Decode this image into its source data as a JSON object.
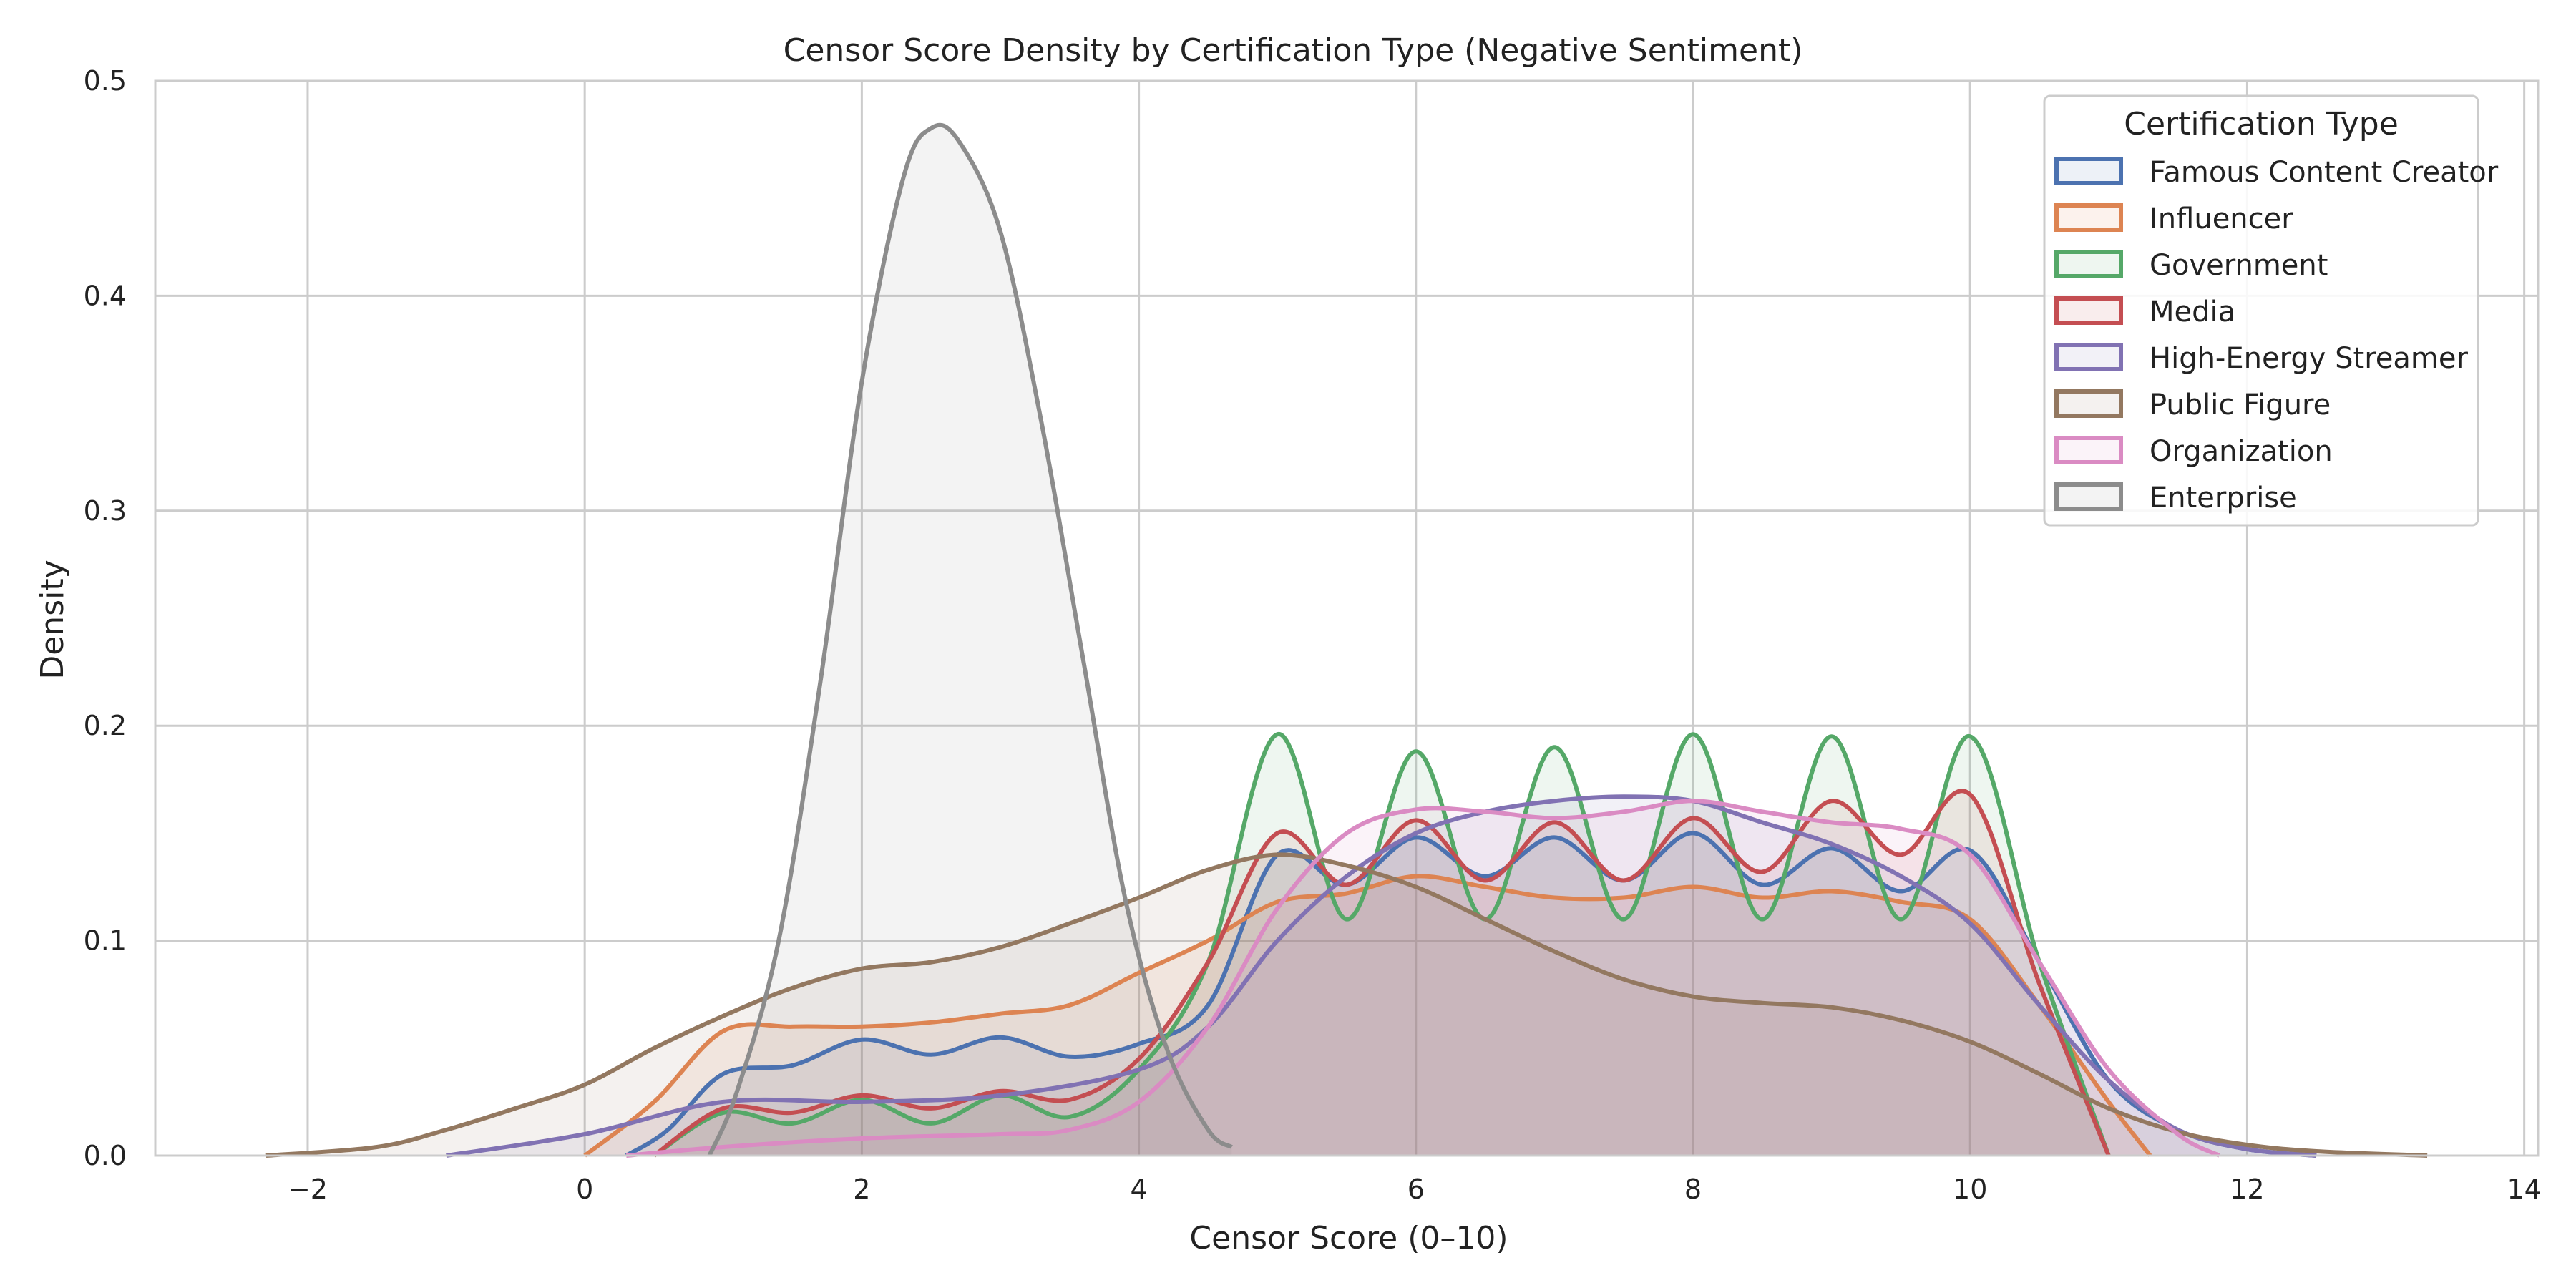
{
  "chart_data": {
    "type": "area",
    "title": "Censor Score Density by Certification Type (Negative Sentiment)",
    "xlabel": "Censor Score (0–10)",
    "ylabel": "Density",
    "xlim": [
      -3.1,
      14.1
    ],
    "ylim": [
      0,
      0.5
    ],
    "xticks": [
      -2,
      0,
      2,
      4,
      6,
      8,
      10,
      12,
      14
    ],
    "xtick_labels": [
      "−2",
      "0",
      "2",
      "4",
      "6",
      "8",
      "10",
      "12",
      "14"
    ],
    "yticks": [
      0.0,
      0.1,
      0.2,
      0.3,
      0.4,
      0.5
    ],
    "ytick_labels": [
      "0.0",
      "0.1",
      "0.2",
      "0.3",
      "0.4",
      "0.5"
    ],
    "grid": true,
    "legend": {
      "title": "Certification Type",
      "placement": "upper right"
    },
    "series": [
      {
        "name": "Famous Content Creator",
        "color": "#4c72b0",
        "points": [
          [
            0.3,
            0
          ],
          [
            0.6,
            0.012
          ],
          [
            1.0,
            0.038
          ],
          [
            1.5,
            0.042
          ],
          [
            2.0,
            0.054
          ],
          [
            2.5,
            0.047
          ],
          [
            3.0,
            0.055
          ],
          [
            3.5,
            0.046
          ],
          [
            4.0,
            0.052
          ],
          [
            4.5,
            0.07
          ],
          [
            5.0,
            0.14
          ],
          [
            5.5,
            0.126
          ],
          [
            6.0,
            0.148
          ],
          [
            6.5,
            0.13
          ],
          [
            7.0,
            0.148
          ],
          [
            7.5,
            0.128
          ],
          [
            8.0,
            0.15
          ],
          [
            8.5,
            0.126
          ],
          [
            9.0,
            0.143
          ],
          [
            9.5,
            0.123
          ],
          [
            10.0,
            0.142
          ],
          [
            10.5,
            0.09
          ],
          [
            11.0,
            0.035
          ],
          [
            11.5,
            0.012
          ],
          [
            12.0,
            0.003
          ],
          [
            12.5,
            0
          ]
        ]
      },
      {
        "name": "Influencer",
        "color": "#dd8452",
        "points": [
          [
            0,
            0
          ],
          [
            0.5,
            0.025
          ],
          [
            1.0,
            0.058
          ],
          [
            1.5,
            0.06
          ],
          [
            2.0,
            0.06
          ],
          [
            2.5,
            0.062
          ],
          [
            3.0,
            0.066
          ],
          [
            3.5,
            0.07
          ],
          [
            4.0,
            0.085
          ],
          [
            4.5,
            0.1
          ],
          [
            5.0,
            0.118
          ],
          [
            5.5,
            0.122
          ],
          [
            6.0,
            0.13
          ],
          [
            6.5,
            0.125
          ],
          [
            7.0,
            0.12
          ],
          [
            7.5,
            0.12
          ],
          [
            8.0,
            0.125
          ],
          [
            8.5,
            0.12
          ],
          [
            9.0,
            0.123
          ],
          [
            9.5,
            0.118
          ],
          [
            10.0,
            0.11
          ],
          [
            10.5,
            0.07
          ],
          [
            11.0,
            0.025
          ],
          [
            11.3,
            0
          ]
        ]
      },
      {
        "name": "Government",
        "color": "#55a868",
        "points": [
          [
            0.5,
            0
          ],
          [
            1.0,
            0.02
          ],
          [
            1.5,
            0.015
          ],
          [
            2.0,
            0.026
          ],
          [
            2.5,
            0.015
          ],
          [
            3.0,
            0.028
          ],
          [
            3.5,
            0.018
          ],
          [
            4.0,
            0.04
          ],
          [
            4.5,
            0.09
          ],
          [
            5.0,
            0.196
          ],
          [
            5.5,
            0.11
          ],
          [
            6.0,
            0.188
          ],
          [
            6.5,
            0.11
          ],
          [
            7.0,
            0.19
          ],
          [
            7.5,
            0.11
          ],
          [
            8.0,
            0.196
          ],
          [
            8.5,
            0.11
          ],
          [
            9.0,
            0.195
          ],
          [
            9.5,
            0.11
          ],
          [
            10.0,
            0.195
          ],
          [
            10.5,
            0.09
          ],
          [
            11.0,
            0
          ]
        ]
      },
      {
        "name": "Media",
        "color": "#c44e52",
        "points": [
          [
            0.5,
            0
          ],
          [
            1.0,
            0.022
          ],
          [
            1.5,
            0.02
          ],
          [
            2.0,
            0.028
          ],
          [
            2.5,
            0.022
          ],
          [
            3.0,
            0.03
          ],
          [
            3.5,
            0.026
          ],
          [
            4.0,
            0.045
          ],
          [
            4.5,
            0.09
          ],
          [
            5.0,
            0.15
          ],
          [
            5.5,
            0.126
          ],
          [
            6.0,
            0.156
          ],
          [
            6.5,
            0.128
          ],
          [
            7.0,
            0.155
          ],
          [
            7.5,
            0.128
          ],
          [
            8.0,
            0.157
          ],
          [
            8.5,
            0.132
          ],
          [
            9.0,
            0.165
          ],
          [
            9.5,
            0.14
          ],
          [
            10.0,
            0.168
          ],
          [
            10.5,
            0.08
          ],
          [
            11.0,
            0
          ]
        ]
      },
      {
        "name": "High-Energy Streamer",
        "color": "#8172b3",
        "points": [
          [
            -1,
            0
          ],
          [
            0,
            0.01
          ],
          [
            1.0,
            0.025
          ],
          [
            2.0,
            0.025
          ],
          [
            3.0,
            0.028
          ],
          [
            4.0,
            0.04
          ],
          [
            4.5,
            0.06
          ],
          [
            5.0,
            0.1
          ],
          [
            5.5,
            0.13
          ],
          [
            6.0,
            0.15
          ],
          [
            6.5,
            0.16
          ],
          [
            7.0,
            0.165
          ],
          [
            7.5,
            0.167
          ],
          [
            8.0,
            0.165
          ],
          [
            8.5,
            0.155
          ],
          [
            9.0,
            0.145
          ],
          [
            9.5,
            0.13
          ],
          [
            10.0,
            0.108
          ],
          [
            10.5,
            0.07
          ],
          [
            11.0,
            0.035
          ],
          [
            11.5,
            0.012
          ],
          [
            12.0,
            0.003
          ],
          [
            12.5,
            0
          ]
        ]
      },
      {
        "name": "Public Figure",
        "color": "#937860",
        "points": [
          [
            -2.3,
            0
          ],
          [
            -1.5,
            0.004
          ],
          [
            -1,
            0.012
          ],
          [
            -0.5,
            0.022
          ],
          [
            0,
            0.033
          ],
          [
            0.5,
            0.05
          ],
          [
            1.0,
            0.065
          ],
          [
            1.5,
            0.078
          ],
          [
            2.0,
            0.087
          ],
          [
            2.5,
            0.09
          ],
          [
            3.0,
            0.097
          ],
          [
            3.5,
            0.108
          ],
          [
            4.0,
            0.12
          ],
          [
            4.5,
            0.133
          ],
          [
            5.0,
            0.14
          ],
          [
            5.5,
            0.135
          ],
          [
            6.0,
            0.125
          ],
          [
            6.5,
            0.11
          ],
          [
            7.0,
            0.095
          ],
          [
            7.5,
            0.082
          ],
          [
            8.0,
            0.074
          ],
          [
            8.5,
            0.071
          ],
          [
            9.0,
            0.069
          ],
          [
            9.5,
            0.063
          ],
          [
            10.0,
            0.053
          ],
          [
            10.5,
            0.038
          ],
          [
            11.0,
            0.022
          ],
          [
            11.5,
            0.011
          ],
          [
            12.0,
            0.005
          ],
          [
            12.5,
            0.002
          ],
          [
            13.3,
            0
          ]
        ]
      },
      {
        "name": "Organization",
        "color": "#da8bc3",
        "points": [
          [
            0.3,
            0
          ],
          [
            1.0,
            0.004
          ],
          [
            2.0,
            0.008
          ],
          [
            3.0,
            0.01
          ],
          [
            3.5,
            0.012
          ],
          [
            4.0,
            0.025
          ],
          [
            4.5,
            0.06
          ],
          [
            5.0,
            0.115
          ],
          [
            5.5,
            0.15
          ],
          [
            6.0,
            0.161
          ],
          [
            6.5,
            0.16
          ],
          [
            7.0,
            0.157
          ],
          [
            7.5,
            0.16
          ],
          [
            8.0,
            0.165
          ],
          [
            8.5,
            0.16
          ],
          [
            9.0,
            0.155
          ],
          [
            9.5,
            0.152
          ],
          [
            10.0,
            0.14
          ],
          [
            10.5,
            0.09
          ],
          [
            11.0,
            0.04
          ],
          [
            11.5,
            0.01
          ],
          [
            11.8,
            0
          ]
        ]
      },
      {
        "name": "Enterprise",
        "color": "#8c8c8c",
        "points": [
          [
            0.9,
            0
          ],
          [
            1.1,
            0.03
          ],
          [
            1.4,
            0.1
          ],
          [
            1.7,
            0.22
          ],
          [
            2.0,
            0.36
          ],
          [
            2.3,
            0.455
          ],
          [
            2.5,
            0.478
          ],
          [
            2.7,
            0.472
          ],
          [
            3.0,
            0.43
          ],
          [
            3.3,
            0.34
          ],
          [
            3.6,
            0.23
          ],
          [
            3.9,
            0.12
          ],
          [
            4.2,
            0.05
          ],
          [
            4.5,
            0.012
          ],
          [
            4.67,
            0.004
          ]
        ]
      }
    ]
  }
}
